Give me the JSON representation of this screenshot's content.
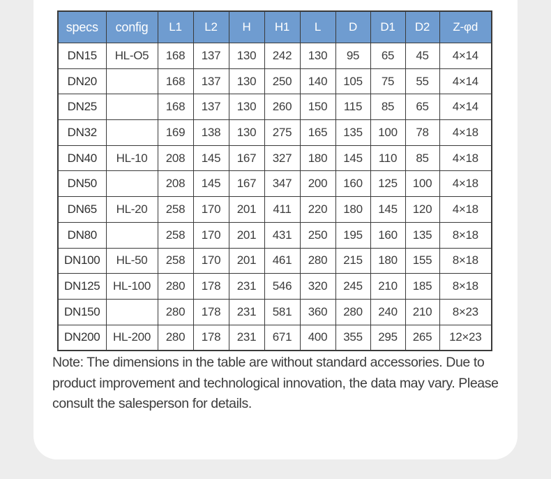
{
  "page": {
    "background_color": "#ededed",
    "card_color": "#ffffff"
  },
  "table": {
    "header_bg_color": "#6f9cd0",
    "header_text_color": "#ffffff",
    "border_color": "#3a3a3a",
    "columns": [
      "specs",
      "config",
      "L1",
      "L2",
      "H",
      "H1",
      "L",
      "D",
      "D1",
      "D2",
      "Z-φd"
    ],
    "rows": [
      [
        "DN15",
        "HL-O5",
        "168",
        "137",
        "130",
        "242",
        "130",
        "95",
        "65",
        "45",
        "4×14"
      ],
      [
        "DN20",
        "",
        "168",
        "137",
        "130",
        "250",
        "140",
        "105",
        "75",
        "55",
        "4×14"
      ],
      [
        "DN25",
        "",
        "168",
        "137",
        "130",
        "260",
        "150",
        "115",
        "85",
        "65",
        "4×14"
      ],
      [
        "DN32",
        "",
        "169",
        "138",
        "130",
        "275",
        "165",
        "135",
        "100",
        "78",
        "4×18"
      ],
      [
        "DN40",
        "HL-10",
        "208",
        "145",
        "167",
        "327",
        "180",
        "145",
        "110",
        "85",
        "4×18"
      ],
      [
        "DN50",
        "",
        "208",
        "145",
        "167",
        "347",
        "200",
        "160",
        "125",
        "100",
        "4×18"
      ],
      [
        "DN65",
        "HL-20",
        "258",
        "170",
        "201",
        "411",
        "220",
        "180",
        "145",
        "120",
        "4×18"
      ],
      [
        "DN80",
        "",
        "258",
        "170",
        "201",
        "431",
        "250",
        "195",
        "160",
        "135",
        "8×18"
      ],
      [
        "DN100",
        "HL-50",
        "258",
        "170",
        "201",
        "461",
        "280",
        "215",
        "180",
        "155",
        "8×18"
      ],
      [
        "DN125",
        "HL-100",
        "280",
        "178",
        "231",
        "546",
        "320",
        "245",
        "210",
        "185",
        "8×18"
      ],
      [
        "DN150",
        "",
        "280",
        "178",
        "231",
        "581",
        "360",
        "280",
        "240",
        "210",
        "8×23"
      ],
      [
        "DN200",
        "HL-200",
        "280",
        "178",
        "231",
        "671",
        "400",
        "355",
        "295",
        "265",
        "12×23"
      ]
    ]
  },
  "note": {
    "text": "Note: The dimensions in the table are without standard accessories. Due to product improvement and technological innovation, the data may vary. Please consult the salesperson for details."
  }
}
